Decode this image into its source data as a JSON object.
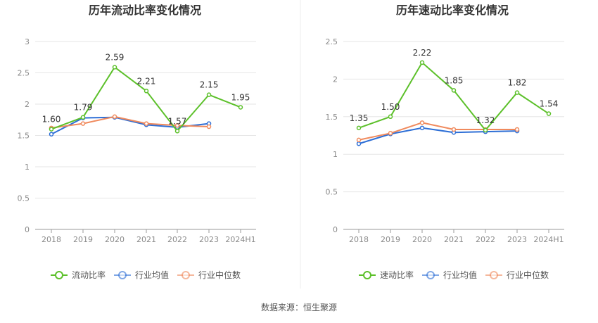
{
  "source_text": "数据来源：恒生聚源",
  "legend_labels": [
    "行业均值",
    "行业中位数"
  ],
  "colors": {
    "main": "#5cc02a",
    "avg": "#2e6fd6",
    "median": "#f08a5d",
    "grid": "#e6e6e6",
    "axis": "#999999"
  },
  "chart_data": [
    {
      "type": "line",
      "title": "历年流动比率变化情况",
      "categories": [
        "2018",
        "2019",
        "2020",
        "2021",
        "2022",
        "2023",
        "2024H1"
      ],
      "ylim": [
        0,
        3
      ],
      "yticks": [
        "0",
        "0.5",
        "1",
        "1.5",
        "2",
        "2.5",
        "3"
      ],
      "series": [
        {
          "name": "流动比率",
          "values": [
            1.6,
            1.79,
            2.59,
            2.21,
            1.57,
            2.15,
            1.95
          ],
          "labeled": true
        },
        {
          "name": "行业均值",
          "values": [
            1.52,
            1.78,
            1.79,
            1.67,
            1.63,
            1.69,
            null
          ],
          "labeled": false
        },
        {
          "name": "行业中位数",
          "values": [
            1.62,
            1.69,
            1.8,
            1.69,
            1.66,
            1.64,
            null
          ],
          "labeled": false
        }
      ],
      "data_labels": [
        "1.60",
        "1.79",
        "2.59",
        "2.21",
        "1.57",
        "2.15",
        "1.95"
      ],
      "grid": true
    },
    {
      "type": "line",
      "title": "历年速动比率变化情况",
      "categories": [
        "2018",
        "2019",
        "2020",
        "2021",
        "2022",
        "2023",
        "2024H1"
      ],
      "ylim": [
        0,
        2.5
      ],
      "yticks": [
        "0",
        "0.5",
        "1",
        "1.5",
        "2",
        "2.5"
      ],
      "series": [
        {
          "name": "速动比率",
          "values": [
            1.35,
            1.5,
            2.22,
            1.85,
            1.32,
            1.82,
            1.54
          ],
          "labeled": true
        },
        {
          "name": "行业均值",
          "values": [
            1.14,
            1.27,
            1.35,
            1.29,
            1.3,
            1.31,
            null
          ],
          "labeled": false
        },
        {
          "name": "行业中位数",
          "values": [
            1.19,
            1.28,
            1.42,
            1.33,
            1.33,
            1.33,
            null
          ],
          "labeled": false
        }
      ],
      "data_labels": [
        "1.35",
        "1.50",
        "2.22",
        "1.85",
        "1.32",
        "1.82",
        "1.54"
      ],
      "grid": true
    }
  ]
}
